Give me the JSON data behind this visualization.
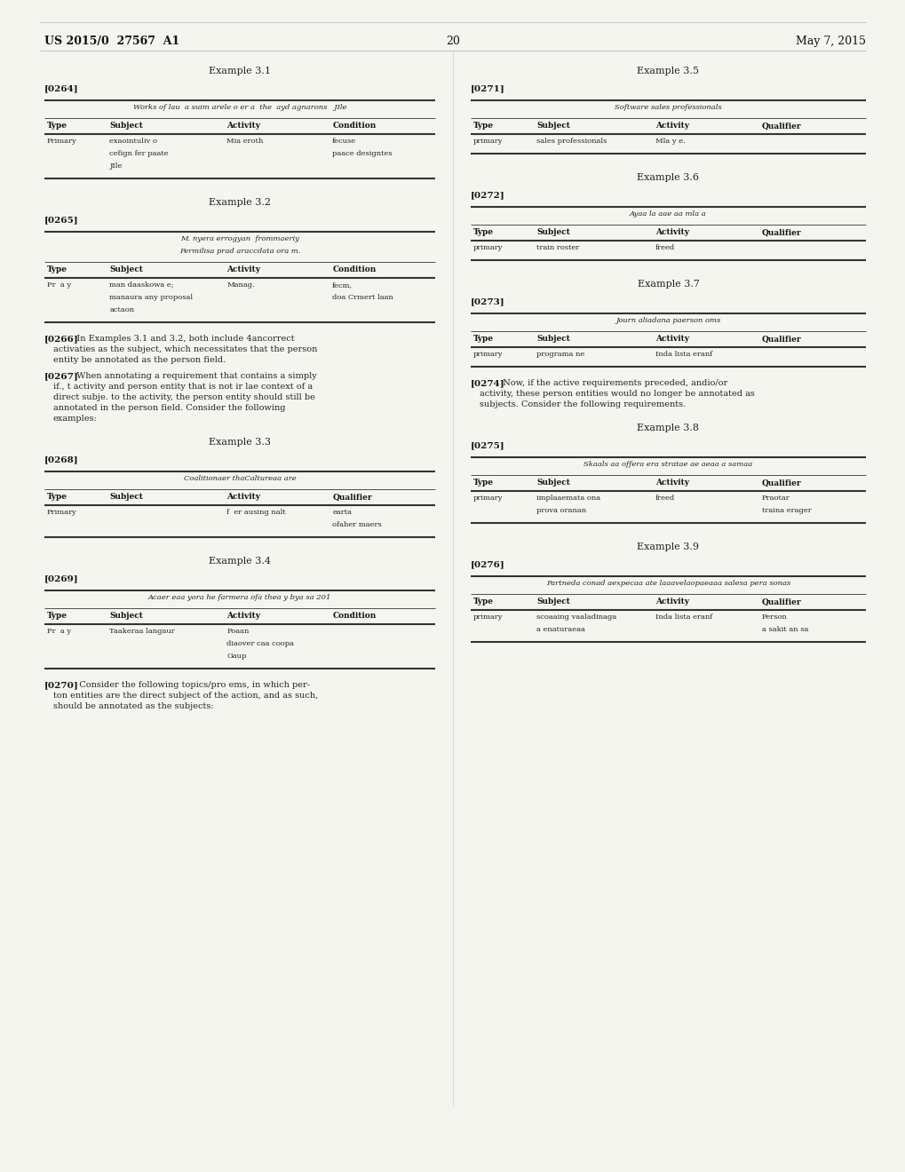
{
  "bg_color": "#f5f5f0",
  "header_left": "US 2015/0  27567  A1",
  "header_right": "May 7, 2015",
  "page_number": "20",
  "left_column": {
    "examples": [
      {
        "title": "Example 3.1",
        "para_id": "[0264]",
        "table": {
          "caption": "Works of lau  a suim arele o er a  the  ayd agnarons   JIle",
          "headers": [
            "Type",
            "Subject",
            "Activity",
            "Condition"
          ],
          "rows": [
            [
              "Primary",
              "exaointuliv o\ncefign fer paate\nJIle",
              "Mia eroth",
              "fecuse\npaace designtes"
            ]
          ]
        }
      },
      {
        "title": "Example 3.2",
        "para_id": "[0265]",
        "table": {
          "caption": "M. nyera errogyan  frommaeriy\nPermilisa prad araccdata ora m.",
          "headers": [
            "Type",
            "Subject",
            "Activity",
            "Condition"
          ],
          "rows": [
            [
              "Pr  a y",
              "man daaskowa e;\nmanaura any proposal\nactaon",
              "Manag.",
              "fecm,\ndoa Crmert laan"
            ]
          ]
        }
      }
    ],
    "paragraphs": [
      {
        "id": "[0266]",
        "text": "  In Examples 3.1 and 3.2, both include 4ancorrect\nactivaties as the subject, which necessitates that the person\nentity be annotated as the person field."
      },
      {
        "id": "[0267]",
        "text": "  When annotating a requirement that contains a simply\nif., t activity and person entity that is not ir lae context of a\ndirect subje. to the activity, the person entity should still be\nannotated in the person field. Consider the following\nexamples:"
      }
    ],
    "examples2": [
      {
        "title": "Example 3.3",
        "para_id": "[0268]",
        "table": {
          "caption": "Coalitionaer thaCaltureaa are",
          "headers": [
            "Type",
            "Subject",
            "Activity",
            "Qualifier"
          ],
          "rows": [
            [
              "Primary",
              "",
              "f  er ausing nalt",
              "earta\nofaher maers"
            ]
          ]
        }
      },
      {
        "title": "Example 3.4",
        "para_id": "[0269]",
        "table": {
          "caption": "Acaer eaa yora he farmera ofa thea y bya sa 201",
          "headers": [
            "Type",
            "Subject",
            "Activity",
            "Condition"
          ],
          "rows": [
            [
              "Pr  a y",
              "Taakeraa langaur",
              "Poaan\ndiaover caa coopa\nGaup",
              ""
            ]
          ]
        }
      }
    ],
    "paragraph_end": {
      "id": "[0270]",
      "text": "   Consider the following topics/pro ems, in which per-\nton entities are the direct subject of the action, and as such,\nshould be annotated as the subjects:"
    }
  },
  "right_column": {
    "examples": [
      {
        "title": "Example 3.5",
        "para_id": "[0271]",
        "table": {
          "caption": "Software sales professionals",
          "headers": [
            "Type",
            "Subject",
            "Activity",
            "Qualifier"
          ],
          "rows": [
            [
              "primary",
              "sales professionals",
              "Mla y e.",
              ""
            ]
          ]
        }
      },
      {
        "title": "Example 3.6",
        "para_id": "[0272]",
        "table": {
          "caption": "Ayaa la aae aa mla a",
          "headers": [
            "Type",
            "Subject",
            "Activity",
            "Qualifier"
          ],
          "rows": [
            [
              "primary",
              "train roster",
              "freed",
              ""
            ]
          ]
        }
      },
      {
        "title": "Example 3.7",
        "para_id": "[0273]",
        "table": {
          "caption": "Journ aliadana paerson oms",
          "headers": [
            "Type",
            "Subject",
            "Activity",
            "Qualifier"
          ],
          "rows": [
            [
              "primary",
              "programa ne",
              "Inda lista eranf",
              ""
            ]
          ]
        }
      }
    ],
    "paragraph_mid": {
      "id": "[0274]",
      "text": "  Now, if the active requirements preceded, andio/or\nactivity, these person entities would no longer be annotated as\nsubjects. Consider the following requirements."
    },
    "examples2": [
      {
        "title": "Example 3.8",
        "para_id": "[0275]",
        "table": {
          "caption": "Skaals aa offera era stratae ae aeaa a samaa",
          "headers": [
            "Type",
            "Subject",
            "Activity",
            "Qualifier"
          ],
          "rows": [
            [
              "primary",
              "implaaemata ona\nprova oranan",
              "freed",
              "Praotar\ntraina erager"
            ]
          ]
        }
      },
      {
        "title": "Example 3.9",
        "para_id": "[0276]",
        "table": {
          "caption": "Partneda conad aexpecaa ate laaavelaopaeaaa salesa pera sonas",
          "headers": [
            "Type",
            "Subject",
            "Activity",
            "Qualifier"
          ],
          "rows": [
            [
              "primary",
              "scoaaing vaaladinaga\na enaturaeaa",
              "Inda lista eranf",
              "Person\na sakit an sa"
            ]
          ]
        }
      }
    ]
  }
}
